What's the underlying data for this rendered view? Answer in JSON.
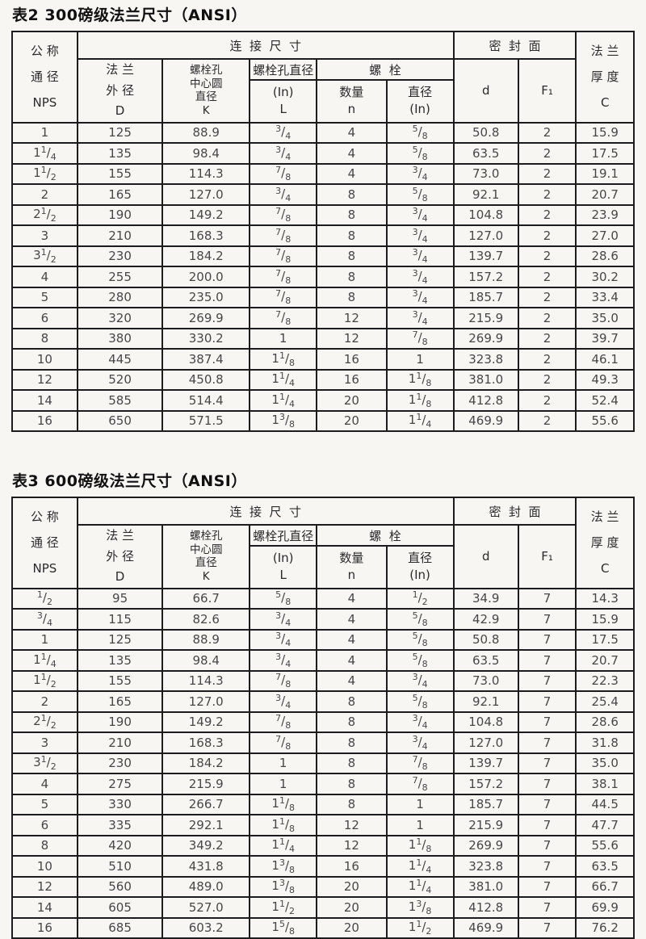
{
  "page": {
    "background": "#f7f6f3",
    "border_color": "#1c1c1c",
    "title_color": "#101010",
    "text_color": "#474747"
  },
  "tables": [
    {
      "title": "表2 300磅级法兰尺寸（ANSI）",
      "header": {
        "nps": "公 称\n通 径\nNPS",
        "connection": "连  接  尺  寸",
        "flange_od": "法 兰\n外 径\nD",
        "bolt_circle": "螺栓孔\n中心圆\n直径\nK",
        "bolt_hole_dia": "螺栓孔直径",
        "bolt_hole_sub": "(In)\nL",
        "bolts": "螺  栓",
        "qty": "数量\nn",
        "dia": "直径\n(In)",
        "seal_face": "密  封  面",
        "d": "d",
        "f1": "F₁",
        "thickness": "法 兰\n厚 度\nC"
      },
      "rows": [
        [
          "1",
          "125",
          "88.9",
          "3/4",
          "4",
          "5/8",
          "50.8",
          "2",
          "15.9"
        ],
        [
          "1 1/4",
          "135",
          "98.4",
          "3/4",
          "4",
          "5/8",
          "63.5",
          "2",
          "17.5"
        ],
        [
          "1 1/2",
          "155",
          "114.3",
          "7/8",
          "4",
          "3/4",
          "73.0",
          "2",
          "19.1"
        ],
        [
          "2",
          "165",
          "127.0",
          "3/4",
          "8",
          "5/8",
          "92.1",
          "2",
          "20.7"
        ],
        [
          "2 1/2",
          "190",
          "149.2",
          "7/8",
          "8",
          "3/4",
          "104.8",
          "2",
          "23.9"
        ],
        [
          "3",
          "210",
          "168.3",
          "7/8",
          "8",
          "3/4",
          "127.0",
          "2",
          "27.0"
        ],
        [
          "3 1/2",
          "230",
          "184.2",
          "7/8",
          "8",
          "3/4",
          "139.7",
          "2",
          "28.6"
        ],
        [
          "4",
          "255",
          "200.0",
          "7/8",
          "8",
          "3/4",
          "157.2",
          "2",
          "30.2"
        ],
        [
          "5",
          "280",
          "235.0",
          "7/8",
          "8",
          "3/4",
          "185.7",
          "2",
          "33.4"
        ],
        [
          "6",
          "320",
          "269.9",
          "7/8",
          "12",
          "3/4",
          "215.9",
          "2",
          "35.0"
        ],
        [
          "8",
          "380",
          "330.2",
          "1",
          "12",
          "7/8",
          "269.9",
          "2",
          "39.7"
        ],
        [
          "10",
          "445",
          "387.4",
          "1 1/8",
          "16",
          "1",
          "323.8",
          "2",
          "46.1"
        ],
        [
          "12",
          "520",
          "450.8",
          "1 1/4",
          "16",
          "1 1/8",
          "381.0",
          "2",
          "49.3"
        ],
        [
          "14",
          "585",
          "514.4",
          "1 1/4",
          "20",
          "1 1/8",
          "412.8",
          "2",
          "52.4"
        ],
        [
          "16",
          "650",
          "571.5",
          "1 3/8",
          "20",
          "1 1/4",
          "469.9",
          "2",
          "55.6"
        ]
      ]
    },
    {
      "title": "表3 600磅级法兰尺寸（ANSI）",
      "header": {
        "nps": "公 称\n通 径\nNPS",
        "connection": "连  接  尺  寸",
        "flange_od": "法 兰\n外 径\nD",
        "bolt_circle": "螺栓孔\n中心圆\n直径\nK",
        "bolt_hole_dia": "螺栓孔直径",
        "bolt_hole_sub": "(In)\nL",
        "bolts": "螺  栓",
        "qty": "数量\nn",
        "dia": "直径\n(In)",
        "seal_face": "密  封  面",
        "d": "d",
        "f1": "F₁",
        "thickness": "法 兰\n厚 度\nC"
      },
      "rows": [
        [
          "1/2",
          "95",
          "66.7",
          "5/8",
          "4",
          "1/2",
          "34.9",
          "7",
          "14.3"
        ],
        [
          "3/4",
          "115",
          "82.6",
          "3/4",
          "4",
          "5/8",
          "42.9",
          "7",
          "15.9"
        ],
        [
          "1",
          "125",
          "88.9",
          "3/4",
          "4",
          "5/8",
          "50.8",
          "7",
          "17.5"
        ],
        [
          "1 1/4",
          "135",
          "98.4",
          "3/4",
          "4",
          "5/8",
          "63.5",
          "7",
          "20.7"
        ],
        [
          "1 1/2",
          "155",
          "114.3",
          "7/8",
          "4",
          "3/4",
          "73.0",
          "7",
          "22.3"
        ],
        [
          "2",
          "165",
          "127.0",
          "3/4",
          "8",
          "5/8",
          "92.1",
          "7",
          "25.4"
        ],
        [
          "2 1/2",
          "190",
          "149.2",
          "7/8",
          "8",
          "3/4",
          "104.8",
          "7",
          "28.6"
        ],
        [
          "3",
          "210",
          "168.3",
          "7/8",
          "8",
          "3/4",
          "127.0",
          "7",
          "31.8"
        ],
        [
          "3 1/2",
          "230",
          "184.2",
          "1",
          "8",
          "7/8",
          "139.7",
          "7",
          "35.0"
        ],
        [
          "4",
          "275",
          "215.9",
          "1",
          "8",
          "7/8",
          "157.2",
          "7",
          "38.1"
        ],
        [
          "5",
          "330",
          "266.7",
          "1 1/8",
          "8",
          "1",
          "185.7",
          "7",
          "44.5"
        ],
        [
          "6",
          "335",
          "292.1",
          "1 1/8",
          "12",
          "1",
          "215.9",
          "7",
          "47.7"
        ],
        [
          "8",
          "420",
          "349.2",
          "1 1/4",
          "12",
          "1 1/8",
          "269.9",
          "7",
          "55.6"
        ],
        [
          "10",
          "510",
          "431.8",
          "1 3/8",
          "16",
          "1 1/4",
          "323.8",
          "7",
          "63.5"
        ],
        [
          "12",
          "560",
          "489.0",
          "1 3/8",
          "20",
          "1 1/4",
          "381.0",
          "7",
          "66.7"
        ],
        [
          "14",
          "605",
          "527.0",
          "1 1/2",
          "20",
          "1 3/8",
          "412.8",
          "7",
          "69.9"
        ],
        [
          "16",
          "685",
          "603.2",
          "1 5/8",
          "20",
          "1 1/2",
          "469.9",
          "7",
          "76.2"
        ]
      ]
    }
  ]
}
